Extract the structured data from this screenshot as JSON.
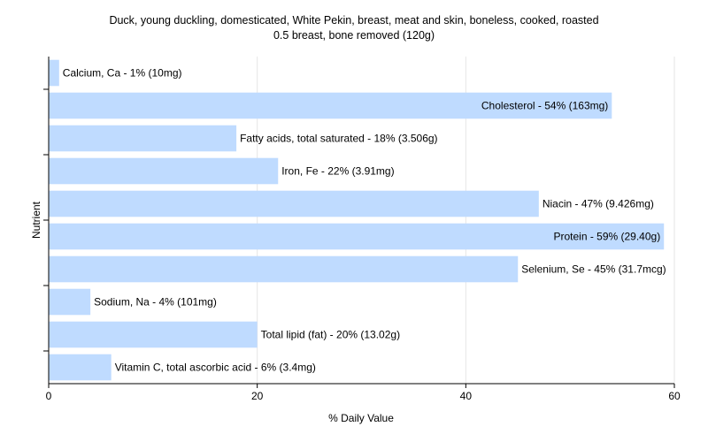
{
  "chart_data": {
    "type": "bar",
    "orientation": "horizontal",
    "title": "Duck, young duckling, domesticated, White Pekin, breast, meat and skin, boneless, cooked, roasted",
    "subtitle": "0.5 breast, bone removed (120g)",
    "xlabel": "% Daily Value",
    "ylabel": "Nutrient",
    "xlim": [
      0,
      60
    ],
    "xticks": [
      0,
      20,
      40,
      60
    ],
    "grid": true,
    "bar_color": "#bfdbff",
    "categories": [
      "Calcium, Ca",
      "Cholesterol",
      "Fatty acids, total saturated",
      "Iron, Fe",
      "Niacin",
      "Protein",
      "Selenium, Se",
      "Sodium, Na",
      "Total lipid (fat)",
      "Vitamin C, total ascorbic acid"
    ],
    "values": [
      1,
      54,
      18,
      22,
      47,
      59,
      45,
      4,
      20,
      6
    ],
    "data_labels": [
      "Calcium, Ca - 1% (10mg)",
      "Cholesterol - 54% (163mg)",
      "Fatty acids, total saturated - 18% (3.506g)",
      "Iron, Fe - 22% (3.91mg)",
      "Niacin - 47% (9.426mg)",
      "Protein - 59% (29.40g)",
      "Selenium, Se - 45% (31.7mcg)",
      "Sodium, Na - 4% (101mg)",
      "Total lipid (fat) - 20% (13.02g)",
      "Vitamin C, total ascorbic acid - 6% (3.4mg)"
    ]
  }
}
